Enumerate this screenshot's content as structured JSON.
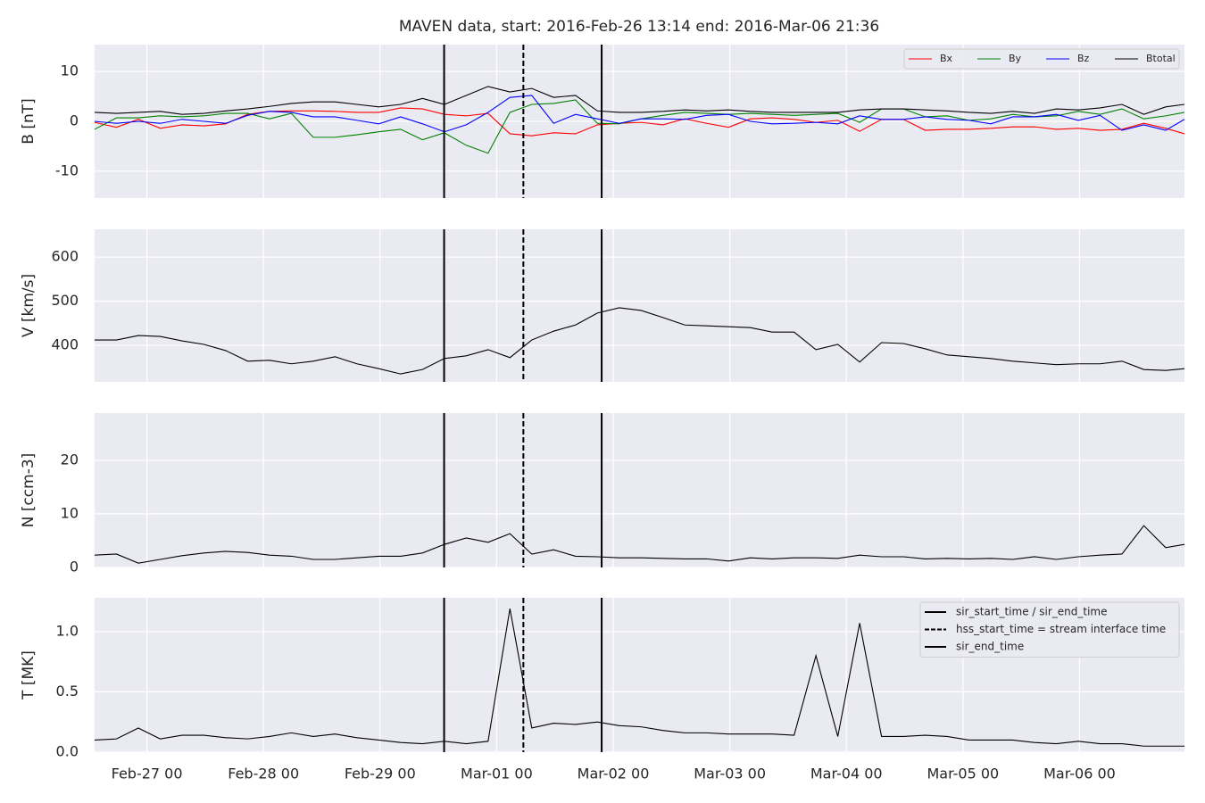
{
  "chart_data": {
    "type": "line",
    "title": "MAVEN data, start: 2016-Feb-26 13:14  end: 2016-Mar-06 21:36",
    "xlim": [
      "2016-02-26T13:14",
      "2016-03-06T21:36"
    ],
    "xticks": [
      {
        "value": "2016-02-27T00:00",
        "label": "Feb-27 00"
      },
      {
        "value": "2016-02-28T00:00",
        "label": "Feb-28 00"
      },
      {
        "value": "2016-02-29T00:00",
        "label": "Feb-29 00"
      },
      {
        "value": "2016-03-01T00:00",
        "label": "Mar-01 00"
      },
      {
        "value": "2016-03-02T00:00",
        "label": "Mar-02 00"
      },
      {
        "value": "2016-03-03T00:00",
        "label": "Mar-03 00"
      },
      {
        "value": "2016-03-04T00:00",
        "label": "Mar-04 00"
      },
      {
        "value": "2016-03-05T00:00",
        "label": "Mar-05 00"
      },
      {
        "value": "2016-03-06T00:00",
        "label": "Mar-06 00"
      }
    ],
    "grid": true,
    "x": [
      "2016-02-26T13:14",
      "2016-02-26T17:44",
      "2016-02-26T22:14",
      "2016-02-27T02:44",
      "2016-02-27T07:14",
      "2016-02-27T11:44",
      "2016-02-27T16:14",
      "2016-02-27T20:44",
      "2016-02-28T01:14",
      "2016-02-28T05:44",
      "2016-02-28T10:14",
      "2016-02-28T14:44",
      "2016-02-28T19:14",
      "2016-02-28T23:44",
      "2016-02-29T04:14",
      "2016-02-29T08:44",
      "2016-02-29T13:14",
      "2016-02-29T17:44",
      "2016-02-29T22:14",
      "2016-03-01T02:44",
      "2016-03-01T07:14",
      "2016-03-01T11:44",
      "2016-03-01T16:14",
      "2016-03-01T20:44",
      "2016-03-02T01:14",
      "2016-03-02T05:44",
      "2016-03-02T10:14",
      "2016-03-02T14:44",
      "2016-03-02T19:14",
      "2016-03-02T23:44",
      "2016-03-03T04:14",
      "2016-03-03T08:44",
      "2016-03-03T13:14",
      "2016-03-03T17:44",
      "2016-03-03T22:14",
      "2016-03-04T02:44",
      "2016-03-04T07:14",
      "2016-03-04T11:44",
      "2016-03-04T16:14",
      "2016-03-04T20:44",
      "2016-03-05T01:14",
      "2016-03-05T05:44",
      "2016-03-05T10:14",
      "2016-03-05T14:44",
      "2016-03-05T19:14",
      "2016-03-05T23:44",
      "2016-03-06T04:14",
      "2016-03-06T08:44",
      "2016-03-06T13:14",
      "2016-03-06T17:44",
      "2016-03-06T21:36"
    ],
    "events": [
      {
        "name": "sir_start_time / sir_end_time",
        "x": "2016-02-29T13:11",
        "style": "solid",
        "color": "#000000"
      },
      {
        "name": "hss_start_time = stream interface time",
        "x": "2016-03-01T05:30",
        "style": "dashed",
        "color": "#000000"
      },
      {
        "name": "sir_end_time",
        "x": "2016-03-01T21:37",
        "style": "solid",
        "color": "#000000"
      }
    ],
    "panels": [
      {
        "ylabel": "B [nT]",
        "ylim": [
          -15.4,
          15.4
        ],
        "yticks": [
          -10,
          0,
          10
        ],
        "legend": "upper right",
        "series": [
          {
            "name": "Bx",
            "color": "#ff0000",
            "values": [
              -0.2,
              -1.2,
              0.4,
              -1.4,
              -0.7,
              -0.9,
              -0.5,
              1.4,
              2.0,
              2.1,
              2.1,
              2.0,
              1.8,
              1.8,
              2.7,
              2.5,
              1.4,
              1.1,
              1.6,
              -2.5,
              -2.9,
              -2.3,
              -2.5,
              -0.7,
              -0.4,
              -0.2,
              -0.7,
              0.5,
              -0.4,
              -1.2,
              0.5,
              0.7,
              0.4,
              -0.2,
              0.2,
              -2.0,
              0.4,
              0.4,
              -1.8,
              -1.6,
              -1.6,
              -1.4,
              -1.1,
              -1.1,
              -1.6,
              -1.4,
              -1.8,
              -1.6,
              -0.4,
              -1.4,
              -2.5
            ]
          },
          {
            "name": "By",
            "color": "#008000",
            "values": [
              -1.6,
              0.7,
              0.7,
              1.1,
              0.9,
              1.1,
              1.6,
              1.6,
              0.5,
              1.6,
              -3.2,
              -3.2,
              -2.7,
              -2.1,
              -1.6,
              -3.7,
              -2.3,
              -4.8,
              -6.4,
              1.8,
              3.4,
              3.6,
              4.3,
              -0.4,
              -0.5,
              0.5,
              1.2,
              1.8,
              1.6,
              1.4,
              1.6,
              1.4,
              1.2,
              1.4,
              1.6,
              -0.2,
              2.5,
              2.5,
              0.9,
              1.1,
              0.2,
              0.5,
              1.4,
              0.9,
              1.1,
              2.0,
              1.4,
              2.5,
              0.5,
              1.1,
              1.8
            ]
          },
          {
            "name": "Bz",
            "color": "#0000ff",
            "values": [
              0,
              -0.4,
              0,
              -0.4,
              0.4,
              0,
              -0.4,
              1.2,
              2.0,
              1.8,
              0.9,
              0.9,
              0.2,
              -0.5,
              0.9,
              -0.5,
              -2.1,
              -0.7,
              1.8,
              4.8,
              5.2,
              -0.4,
              1.4,
              0.5,
              -0.4,
              0.5,
              0.5,
              0.4,
              1.2,
              1.4,
              0,
              -0.5,
              -0.4,
              -0.2,
              -0.5,
              1.1,
              0.4,
              0.4,
              0.9,
              0.4,
              0.2,
              -0.5,
              0.9,
              0.9,
              1.4,
              0.2,
              1.2,
              -1.8,
              -0.7,
              -1.8,
              0.4
            ]
          },
          {
            "name": "Btotal",
            "color": "#000000",
            "values": [
              1.8,
              1.6,
              1.8,
              2.0,
              1.4,
              1.6,
              2.1,
              2.5,
              3.0,
              3.6,
              3.9,
              3.9,
              3.4,
              2.9,
              3.4,
              4.6,
              3.4,
              5.2,
              7.0,
              5.9,
              6.6,
              4.8,
              5.2,
              2.1,
              1.8,
              1.8,
              2.0,
              2.3,
              2.1,
              2.3,
              2.0,
              1.8,
              1.8,
              1.8,
              1.8,
              2.3,
              2.5,
              2.5,
              2.3,
              2.1,
              1.8,
              1.6,
              2.0,
              1.6,
              2.5,
              2.3,
              2.7,
              3.4,
              1.4,
              2.9,
              3.4
            ]
          }
        ]
      },
      {
        "ylabel": "V [km/s]",
        "ylim": [
          317,
          663
        ],
        "yticks": [
          400,
          500,
          600
        ],
        "series": [
          {
            "color": "#000000",
            "values": [
              412,
              412,
              422,
              420,
              410,
              402,
              388,
              364,
              366,
              358,
              364,
              374,
              358,
              347,
              335,
              345,
              370,
              376,
              390,
              372,
              412,
              432,
              446,
              473,
              485,
              479,
              463,
              446,
              444,
              442,
              440,
              430,
              430,
              390,
              402,
              362,
              406,
              404,
              392,
              378,
              374,
              370,
              364,
              360,
              356,
              358,
              358,
              364,
              345,
              343,
              347
            ]
          }
        ]
      },
      {
        "ylabel": "N [ccm-3]",
        "ylim": [
          0,
          28.8
        ],
        "yticks": [
          0,
          10,
          20
        ],
        "series": [
          {
            "color": "#000000",
            "values": [
              2.3,
              2.5,
              0.8,
              1.5,
              2.2,
              2.7,
              3.0,
              2.8,
              2.3,
              2.1,
              1.5,
              1.5,
              1.8,
              2.1,
              2.1,
              2.7,
              4.3,
              5.5,
              4.7,
              6.3,
              2.5,
              3.3,
              2.1,
              2.0,
              1.8,
              1.8,
              1.7,
              1.6,
              1.6,
              1.2,
              1.8,
              1.6,
              1.8,
              1.8,
              1.7,
              2.3,
              2.0,
              2.0,
              1.6,
              1.7,
              1.6,
              1.7,
              1.5,
              2.0,
              1.5,
              2.0,
              2.3,
              2.5,
              7.8,
              3.7,
              4.3
            ]
          }
        ]
      },
      {
        "ylabel": "T [MK]",
        "ylim": [
          0,
          1.28
        ],
        "yticks": [
          {
            "value": 0,
            "label": "0.0"
          },
          0.5,
          {
            "value": 1,
            "label": "1.0"
          }
        ],
        "legend": "upper right",
        "series": [
          {
            "color": "#000000",
            "values": [
              0.1,
              0.11,
              0.2,
              0.11,
              0.14,
              0.14,
              0.12,
              0.11,
              0.13,
              0.16,
              0.13,
              0.15,
              0.12,
              0.1,
              0.08,
              0.07,
              0.09,
              0.07,
              0.09,
              1.19,
              0.2,
              0.24,
              0.23,
              0.25,
              0.22,
              0.21,
              0.18,
              0.16,
              0.16,
              0.15,
              0.15,
              0.15,
              0.14,
              0.8,
              0.13,
              1.07,
              0.13,
              0.13,
              0.14,
              0.13,
              0.1,
              0.1,
              0.1,
              0.08,
              0.07,
              0.09,
              0.07,
              0.07,
              0.05,
              0.05,
              0.05
            ]
          }
        ]
      }
    ]
  }
}
